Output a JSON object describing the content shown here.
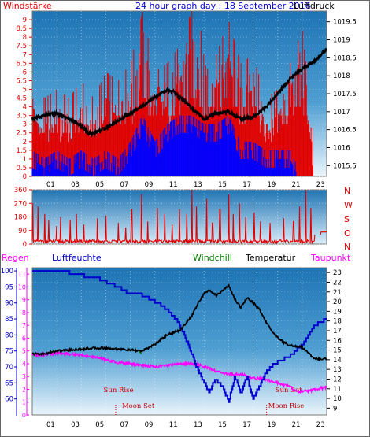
{
  "header": {
    "left_label": "Windstärke",
    "title": "24 hour graph day : 18 September 2016",
    "right_label": "Luftdruck"
  },
  "bottom_header": {
    "regen": "Regen",
    "luftfeuchte": "Luftfeuchte",
    "windchill": "Windchill",
    "temperatur": "Temperatur",
    "taupunkt": "Taupunkt"
  },
  "direction_labels": [
    "N",
    "W",
    "S",
    "O",
    "N"
  ],
  "colors": {
    "wind_bar": "#e00000",
    "gust_bar": "#0000ff",
    "pressure": "#000000",
    "direction": "#e00000",
    "humidity": "#0000cc",
    "temperature": "#000000",
    "dewpoint": "#ff00ff",
    "windchill": "#008000",
    "regen_label": "#ff00ff",
    "luftfeuchte_label": "#0000cc",
    "windchill_label": "#008000",
    "taupunkt_label": "#ff00ff",
    "panel_top": "#1e74b4",
    "panel_bottom": "#eaf4fb"
  },
  "astro": {
    "sun_rise": "Sun Rise",
    "sun_set": "Sun Set",
    "moon_set": "Moon Set",
    "moon_rise": "Moon Rise"
  },
  "chart_data": [
    {
      "type": "bar",
      "name": "wind_pressure",
      "x_ticks": [
        "01",
        "03",
        "05",
        "07",
        "09",
        "11",
        "13",
        "15",
        "17",
        "19",
        "21",
        "23"
      ],
      "x_range_hours": [
        0,
        24
      ],
      "wind_axis": {
        "label": "Windstärke",
        "ticks": [
          "0",
          "0.5",
          "1",
          "1.5",
          "2",
          "2.5",
          "3",
          "3.5",
          "4",
          "4.5",
          "5",
          "5.5",
          "6",
          "6.5",
          "7",
          "7.5",
          "8",
          "8.5",
          "9"
        ],
        "range": [
          0,
          9.5
        ]
      },
      "pressure_axis": {
        "label": "Luftdruck",
        "ticks": [
          "1015.5",
          "1016",
          "1016.5",
          "1017",
          "1017.5",
          "1018",
          "1018.5",
          "1019",
          "1019.5"
        ],
        "range": [
          1015.2,
          1019.8
        ]
      },
      "pressure_series": {
        "hours": [
          0,
          1,
          2,
          3,
          4,
          4.6,
          5,
          6,
          7,
          8,
          9,
          10,
          11,
          11.5,
          12,
          13,
          14,
          15,
          16,
          17,
          18,
          19,
          20,
          21,
          22,
          23,
          24
        ],
        "values": [
          1016.8,
          1016.9,
          1016.95,
          1016.8,
          1016.6,
          1016.4,
          1016.4,
          1016.55,
          1016.75,
          1016.95,
          1017.15,
          1017.4,
          1017.6,
          1017.55,
          1017.4,
          1017.1,
          1016.8,
          1016.95,
          1017.0,
          1016.8,
          1016.85,
          1017.1,
          1017.5,
          1017.9,
          1018.2,
          1018.4,
          1018.75
        ]
      },
      "gust_envelope": {
        "hours": [
          0,
          1,
          2,
          3,
          4,
          5,
          6,
          7,
          8,
          9,
          10,
          11,
          12,
          13,
          14,
          15,
          16,
          17,
          18,
          19,
          20,
          21,
          22,
          23,
          24
        ],
        "values": [
          5.5,
          4.5,
          5.0,
          4.5,
          5.5,
          4.5,
          6.0,
          5.5,
          6.5,
          9.5,
          6.0,
          6.5,
          7.5,
          9.5,
          8.0,
          7.0,
          9.0,
          6.5,
          7.0,
          4.5,
          5.0,
          6.5,
          8.5,
          2.0,
          0.0
        ]
      },
      "wind_envelope": {
        "hours": [
          0,
          1,
          2,
          3,
          4,
          5,
          6,
          7,
          8,
          9,
          10,
          11,
          12,
          13,
          14,
          15,
          16,
          17,
          18,
          19,
          20,
          21,
          22,
          23,
          24
        ],
        "values": [
          1.5,
          1.0,
          1.5,
          1.0,
          1.5,
          1.0,
          1.5,
          1.0,
          2.0,
          3.5,
          2.0,
          3.0,
          3.5,
          3.5,
          3.0,
          3.0,
          3.5,
          2.0,
          2.0,
          1.5,
          1.5,
          1.5,
          0.0,
          0.0,
          0.0
        ]
      }
    },
    {
      "type": "line",
      "name": "wind_direction",
      "x_range_hours": [
        0,
        24
      ],
      "y_axis": {
        "ticks": [
          "360",
          "270",
          "180",
          "90",
          "0"
        ],
        "range": [
          0,
          360
        ]
      },
      "base_level": 15,
      "spikes": [
        [
          0.05,
          270
        ],
        [
          0.45,
          250
        ],
        [
          1.0,
          200
        ],
        [
          1.35,
          160
        ],
        [
          2.0,
          120
        ],
        [
          2.3,
          180
        ],
        [
          3.1,
          160
        ],
        [
          3.6,
          200
        ],
        [
          4.2,
          130
        ],
        [
          5.3,
          170
        ],
        [
          6.0,
          190
        ],
        [
          7.0,
          140
        ],
        [
          7.6,
          110
        ],
        [
          8.1,
          230
        ],
        [
          8.9,
          330
        ],
        [
          9.4,
          150
        ],
        [
          10.2,
          240
        ],
        [
          10.8,
          200
        ],
        [
          11.4,
          130
        ],
        [
          12.0,
          230
        ],
        [
          12.6,
          200
        ],
        [
          13.0,
          360
        ],
        [
          13.4,
          250
        ],
        [
          14.2,
          300
        ],
        [
          14.7,
          140
        ],
        [
          15.3,
          230
        ],
        [
          16.0,
          330
        ],
        [
          16.4,
          200
        ],
        [
          16.9,
          270
        ],
        [
          17.4,
          180
        ],
        [
          18.1,
          210
        ],
        [
          18.6,
          150
        ],
        [
          19.4,
          140
        ],
        [
          20.5,
          170
        ],
        [
          21.3,
          150
        ],
        [
          21.8,
          250
        ],
        [
          22.3,
          360
        ],
        [
          22.7,
          240
        ]
      ],
      "tail": {
        "start_hour": 23.0,
        "values": [
          60,
          80
        ]
      }
    },
    {
      "type": "line",
      "name": "humidity_temperature",
      "x_ticks": [
        "01",
        "03",
        "05",
        "07",
        "09",
        "11",
        "13",
        "15",
        "17",
        "19",
        "21",
        "23"
      ],
      "x_range_hours": [
        0,
        24
      ],
      "left_axis": {
        "label": "Luftfeuchte",
        "ticks": [
          "100",
          "95",
          "90",
          "85",
          "80",
          "75",
          "70",
          "65",
          "60"
        ],
        "range": [
          55,
          101
        ]
      },
      "regen_axis": {
        "label": "Regen",
        "ticks": [
          "0",
          "1",
          "2",
          "3",
          "4",
          "5",
          "6",
          "7",
          "8",
          "9",
          "10",
          "11"
        ],
        "range": [
          0,
          11.5
        ]
      },
      "right_axis": {
        "label": "Temperatur",
        "ticks": [
          "9",
          "10",
          "11",
          "12",
          "13",
          "14",
          "15",
          "16",
          "17",
          "18",
          "19",
          "20",
          "21",
          "22",
          "23"
        ],
        "range": [
          8.3,
          23.5
        ]
      },
      "humidity": {
        "hours": [
          0,
          2.5,
          3.5,
          5.5,
          6.3,
          7.0,
          7.6,
          8.6,
          9.5,
          10.4,
          11.2,
          11.8,
          12.4,
          12.9,
          13.4,
          13.9,
          14.4,
          14.9,
          15.5,
          16.0,
          16.5,
          17.0,
          17.5,
          18.0,
          18.5,
          19.0,
          19.7,
          20.5,
          21.2,
          22.0,
          23.0,
          24.0
        ],
        "values": [
          100,
          100,
          99,
          97.5,
          96,
          95,
          93.5,
          93,
          91.5,
          89.5,
          87,
          84.5,
          80,
          75,
          70,
          66,
          62,
          66,
          64,
          59,
          67,
          62,
          67,
          60,
          64,
          68,
          71,
          72.5,
          74,
          77,
          83,
          85
        ]
      },
      "temperature": {
        "hours": [
          0,
          1,
          2,
          3,
          4,
          5,
          6,
          7,
          8,
          9,
          10,
          11,
          12,
          13,
          13.5,
          14,
          14.5,
          15,
          15.5,
          16,
          16.5,
          17,
          17.5,
          18,
          18.5,
          19,
          19.5,
          20,
          20.5,
          21,
          21.5,
          22,
          23,
          24
        ],
        "values": [
          14.6,
          14.6,
          14.9,
          15.0,
          15.1,
          15.2,
          15.2,
          15.1,
          15.0,
          14.9,
          15.6,
          16.6,
          17.0,
          18.5,
          19.8,
          20.8,
          21.2,
          20.6,
          21.1,
          21.7,
          20.3,
          19.4,
          20.4,
          19.9,
          19.2,
          18.0,
          17.0,
          16.3,
          15.8,
          15.5,
          15.4,
          15.3,
          14.1,
          14.1
        ]
      },
      "dewpoint": {
        "hours": [
          0,
          1,
          2,
          3,
          4,
          5,
          6,
          7,
          8,
          9,
          10,
          11,
          12,
          13,
          14,
          15,
          16,
          17,
          18,
          19,
          20,
          21,
          21.5,
          22,
          23,
          24
        ],
        "values": [
          14.5,
          14.5,
          14.7,
          14.6,
          14.5,
          14.3,
          14.0,
          13.7,
          13.6,
          13.4,
          13.3,
          13.4,
          13.6,
          13.6,
          13.3,
          12.8,
          12.5,
          12.5,
          12.1,
          12.0,
          11.6,
          11.2,
          10.8,
          10.7,
          10.9,
          11.2
        ]
      },
      "windchill": {
        "hours": [
          8.7,
          8.9
        ],
        "values": [
          14.9,
          14.6
        ]
      },
      "astro_events": [
        {
          "key": "sun_rise",
          "hour": 6.9
        },
        {
          "key": "moon_set",
          "hour": 6.8
        },
        {
          "key": "sun_set",
          "hour": 19.3
        },
        {
          "key": "moon_rise",
          "hour": 19.1
        }
      ]
    }
  ]
}
